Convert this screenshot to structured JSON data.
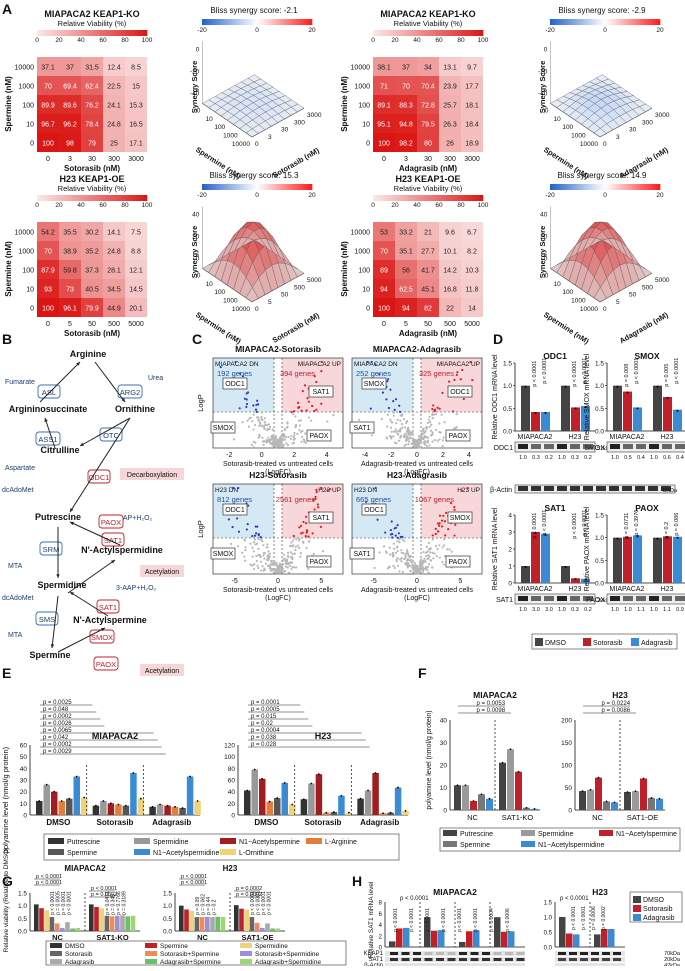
{
  "panels": {
    "A": "A",
    "B": "B",
    "C": "C",
    "D": "D",
    "E": "E",
    "F": "F",
    "G": "G",
    "H": "H"
  },
  "heatmaps": [
    {
      "title": "MIAPACA2 KEAP1-KO",
      "subtitle": "Relative Viability (%)",
      "scale": [
        "0",
        "20",
        "40",
        "60",
        "80",
        "100"
      ],
      "ylabel": "Spermine (nM)",
      "xlabel": "Sotorasib (nM)",
      "rows": [
        "10000",
        "1000",
        "100",
        "10",
        "0"
      ],
      "cols": [
        "0",
        "3",
        "30",
        "300",
        "3000"
      ],
      "values": [
        [
          37.1,
          37.0,
          31.5,
          12.4,
          8.5
        ],
        [
          70.0,
          69.4,
          62.4,
          22.5,
          15.0
        ],
        [
          89.9,
          89.6,
          76.2,
          24.1,
          15.3
        ],
        [
          96.7,
          96.2,
          78.4,
          24.8,
          16.5
        ],
        [
          100,
          98.0,
          79.0,
          25.0,
          17.1
        ]
      ]
    },
    {
      "title": "MIAPACA2 KEAP1-KO",
      "subtitle": "Relative Viability (%)",
      "scale": [
        "0",
        "20",
        "40",
        "60",
        "80",
        "100"
      ],
      "ylabel": "Spermine (nM)",
      "xlabel": "Adagrasib (nM)",
      "rows": [
        "10000",
        "1000",
        "100",
        "10",
        "0"
      ],
      "cols": [
        "0",
        "3",
        "30",
        "300",
        "3000"
      ],
      "values": [
        [
          38.1,
          37.0,
          34.0,
          13.1,
          9.7
        ],
        [
          71.0,
          70.0,
          70.4,
          23.9,
          17.7
        ],
        [
          89.1,
          88.3,
          72.8,
          25.7,
          18.1
        ],
        [
          95.1,
          94.8,
          79.5,
          26.3,
          18.4
        ],
        [
          100,
          98.2,
          80.0,
          26.0,
          18.9
        ]
      ]
    },
    {
      "title": "H23 KEAP1-OE",
      "subtitle": "Relative Viability (%)",
      "scale": [
        "0",
        "20",
        "40",
        "60",
        "80",
        "100"
      ],
      "ylabel": "Spermine (nM)",
      "xlabel": "Sotorasib (nM)",
      "rows": [
        "10000",
        "1000",
        "100",
        "10",
        "0"
      ],
      "cols": [
        "0",
        "5",
        "50",
        "500",
        "5000"
      ],
      "values": [
        [
          54.2,
          35.5,
          30.2,
          14.1,
          7.5
        ],
        [
          70.0,
          38.9,
          35.2,
          24.8,
          8.8
        ],
        [
          87.9,
          59.8,
          37.3,
          28.1,
          12.1
        ],
        [
          93.0,
          73.0,
          40.5,
          34.5,
          14.5
        ],
        [
          100,
          96.1,
          79.9,
          44.9,
          20.1
        ]
      ]
    },
    {
      "title": "H23 KEAP1-OE",
      "subtitle": "Relative Viability (%)",
      "scale": [
        "0",
        "20",
        "40",
        "60",
        "80",
        "100"
      ],
      "ylabel": "Spermine (nM)",
      "xlabel": "Adagrasib (nM)",
      "rows": [
        "10000",
        "1000",
        "100",
        "10",
        "0"
      ],
      "cols": [
        "0",
        "5",
        "50",
        "500",
        "5000"
      ],
      "values": [
        [
          53.0,
          33.2,
          21.0,
          9.6,
          6.7
        ],
        [
          70.0,
          35.1,
          27.7,
          10.1,
          8.2
        ],
        [
          89.0,
          56.0,
          41.7,
          14.2,
          10.3
        ],
        [
          94.0,
          62.5,
          45.1,
          16.8,
          11.8
        ],
        [
          100,
          94.0,
          82.0,
          22.0,
          14.0
        ]
      ]
    }
  ],
  "surfaces": [
    {
      "title": "Bliss synergy score: -2.1",
      "scale": [
        "-20",
        "0",
        "20"
      ],
      "zlabel": "Synergy Score",
      "xlabel": "Spermine (nM)",
      "ylabel": "Sotorasib (nM)",
      "xt": [
        "10000",
        "1000",
        "100",
        "10",
        "0"
      ],
      "yt": [
        "0",
        "3",
        "30",
        "300",
        "3000"
      ],
      "zt": [
        "-40",
        "-20",
        "0"
      ],
      "peak": 2.0
    },
    {
      "title": "Bliss synergy score: -2.9",
      "scale": [
        "-20",
        "0",
        "20"
      ],
      "zlabel": "Synergy Score",
      "xlabel": "Spermine (nM)",
      "ylabel": "Adagrasib (nM)",
      "xt": [
        "10000",
        "1000",
        "100",
        "10",
        "0"
      ],
      "yt": [
        "0",
        "3",
        "30",
        "300",
        "3000"
      ],
      "zt": [
        "-40",
        "-20",
        "0"
      ],
      "peak": 4.0
    },
    {
      "title": "Bliss synergy score: 15.3",
      "scale": [
        "-20",
        "0",
        "20"
      ],
      "zlabel": "Synergy Score",
      "xlabel": "Spermine (nM)",
      "ylabel": "Sotorasib (nM)",
      "xt": [
        "10000",
        "1000",
        "100",
        "10",
        "0"
      ],
      "yt": [
        "0",
        "5",
        "50",
        "500",
        "5000"
      ],
      "zt": [
        "0",
        "20",
        "40"
      ],
      "peak": 30.0
    },
    {
      "title": "Bliss synergy score: 14.9",
      "scale": [
        "-20",
        "0",
        "20"
      ],
      "zlabel": "Synergy Score",
      "xlabel": "Spermine (nM)",
      "ylabel": "Adagrasib (nM)",
      "xt": [
        "10000",
        "1000",
        "100",
        "10",
        "0"
      ],
      "yt": [
        "0",
        "5",
        "50",
        "500",
        "5000"
      ],
      "zt": [
        "0",
        "20",
        "40"
      ],
      "peak": 30.0
    }
  ],
  "pathway": {
    "nodes": {
      "arginine": "Arginine",
      "argininosuccinate": "Argininosuccinate",
      "ornithine": "Ornithine",
      "citrulline": "Citrulline",
      "putrescine": "Putrescine",
      "spermidine": "Spermidine",
      "spermine": "Spermine",
      "n1_acetylspermidine": "N'-Actylspermidine",
      "n1_acetylspermine": "N'-Actylspermine"
    },
    "enzymes": {
      "asl": "ASL",
      "arg2": "ARG2",
      "ass1": "ASS1",
      "otc": "OTC",
      "odc1": "ODC1",
      "srm": "SRM",
      "sms": "SMS",
      "sat1_a": "SAT1",
      "sat1_b": "SAT1",
      "smox": "SMOX",
      "paox_a": "PAOX",
      "paox_b": "PAOX"
    },
    "small": {
      "fumarate": "Fumarate",
      "urea": "Urea",
      "aspartate": "Aspartate",
      "dcadomet_a": "dcAdoMet",
      "mta_a": "MTA",
      "dcadomet_b": "dcAdoMet",
      "mta_b": "MTA",
      "aap_a": "3-AAP+H₂O₂",
      "aap_b": "3-AAP+H₂O₂"
    },
    "processes": {
      "decarboxylation": "Decarboxylation",
      "acetylation_a": "Acetylation",
      "acetylation_b": "Acetylation"
    }
  },
  "volcanoes": [
    {
      "title": "MIAPACA2-Sotorasib",
      "dn": "MIAPACA2 DN",
      "up": "MIAPACA2 UP",
      "dn_count": "192 genes",
      "up_count": "394 genes",
      "xlabel": "Sotorasib-treated vs untreated cells",
      "xlabel2": "(LogFC)",
      "ylabel": "LogP",
      "xt": [
        "-2",
        "0",
        "2",
        "4"
      ],
      "labels": [
        "ODC1",
        "SAT1",
        "SMOX",
        "PAOX"
      ]
    },
    {
      "title": "MIAPACA2-Adagrasib",
      "dn": "MIAPACA2 DN",
      "up": "MIAPACA2 UP",
      "dn_count": "252 genes",
      "up_count": "325 genes",
      "xlabel": "Adagrasib-treated vs untreated cells",
      "xlabel2": "(LogFC)",
      "ylabel": "",
      "xt": [
        "-4",
        "-2",
        "0",
        "2",
        "4"
      ],
      "labels": [
        "SMOX",
        "ODC1",
        "SAT1",
        "PAOX"
      ]
    },
    {
      "title": "H23-Sotorasib",
      "dn": "H23 DN",
      "up": "H23 UP",
      "dn_count": "812 genes",
      "up_count": "2561 genes",
      "xlabel": "Sotorasib-treated vs untreated cells",
      "xlabel2": "(LogFC)",
      "ylabel": "LogP",
      "xt": [
        "-5",
        "0",
        "5"
      ],
      "labels": [
        "ODC1",
        "SAT1",
        "SMOX",
        "PAOX"
      ]
    },
    {
      "title": "H23-Adagrasib",
      "dn": "H23 DN",
      "up": "H23 UP",
      "dn_count": "665 genes",
      "up_count": "1067 genes",
      "xlabel": "Adagrasib-treated vs untreated cells",
      "xlabel2": "(LogFC)",
      "ylabel": "",
      "xt": [
        "-5",
        "0",
        "5"
      ],
      "labels": [
        "ODC1",
        "SMOX",
        "SAT1",
        "PAOX"
      ]
    }
  ],
  "mrna": [
    {
      "title": "ODC1",
      "ylabel": "Relative ODC1 mRNA level",
      "yt": [
        "0.0",
        "0.5",
        "1.0",
        "1.5"
      ],
      "values": [
        [
          1.0,
          0.42,
          0.42
        ],
        [
          1.0,
          0.52,
          0.55
        ]
      ],
      "pvals": [
        [
          "p < 0.0001",
          "p < 0.0001"
        ],
        [
          "p < 0.0001",
          "p < 0.0001"
        ]
      ],
      "groups": [
        "MIAPACA2",
        "H23"
      ],
      "blot": "ODC1",
      "kda": "51kDa",
      "quant": [
        "1.0",
        "0.3",
        "0.2",
        "1.0",
        "0.3",
        "0.2"
      ]
    },
    {
      "title": "SMOX",
      "ylabel": "Relative SMOX mRNA level",
      "yt": [
        "0.0",
        "0.5",
        "1.0",
        "1.5"
      ],
      "values": [
        [
          1.0,
          0.87,
          0.52
        ],
        [
          1.0,
          0.75,
          0.47
        ]
      ],
      "pvals": [
        [
          "p = 0.008",
          "p < 0.0001"
        ],
        [
          "p = 0.005",
          "p < 0.0001"
        ]
      ],
      "groups": [
        "MIAPACA2",
        "H23"
      ],
      "blot": "SMOX",
      "kda": "62kDa",
      "quant": [
        "1.0",
        "0.5",
        "0.4",
        "1.0",
        "0.6",
        "0.4"
      ]
    },
    {
      "title": "SAT1",
      "ylabel": "Relative SAT1 mRNA level",
      "yt": [
        "0",
        "1",
        "2",
        "3",
        "4"
      ],
      "values": [
        [
          1.0,
          3.0,
          2.9
        ],
        [
          1.0,
          0.28,
          0.25
        ]
      ],
      "pvals": [
        [
          "p < 0.0001",
          "p < 0.0001"
        ],
        [
          "p < 0.0001",
          "p < 0.0001"
        ]
      ],
      "groups": [
        "MIAPACA2",
        "H23"
      ],
      "blot": "SAT1",
      "kda": "20kDa",
      "quant": [
        "1.0",
        "3.0",
        "3.0",
        "1.0",
        "0.3",
        "0.2"
      ]
    },
    {
      "title": "PAOX",
      "ylabel": "Relative PAOX mRNA level",
      "yt": [
        "0.0",
        "0.5",
        "1.0",
        "1.5"
      ],
      "values": [
        [
          1.0,
          1.02,
          1.05
        ],
        [
          1.0,
          1.03,
          1.02
        ]
      ],
      "pvals": [
        [
          "p = 0.0731",
          "p = 0.3976"
        ],
        [
          "p = 0.2",
          "p = 0.086"
        ]
      ],
      "groups": [
        "MIAPACA2",
        "H23"
      ],
      "blot": "PAOX",
      "kda": "55kDa",
      "quant": [
        "1.0",
        "1.0",
        "1.1",
        "1.0",
        "1.1",
        "0.9"
      ]
    }
  ],
  "blot_extra": {
    "actin": "β-Actin",
    "actin_kda": "42kDa"
  },
  "legend_d": [
    "DMSO",
    "Sotorasib",
    "Adagrasib"
  ],
  "polyamine_e": [
    {
      "title": "MIAPACA2",
      "groups": [
        "DMSO",
        "Sotorasib",
        "Adagrasib"
      ],
      "values": [
        [
          12,
          26,
          20,
          12,
          14,
          33,
          15
        ],
        [
          8,
          12,
          10,
          9,
          8,
          36,
          14
        ],
        [
          7,
          9,
          8,
          7,
          6,
          33,
          12
        ]
      ],
      "pvals": [
        "p = 0.0025",
        "p = 0.048",
        "p = 0.0002",
        "p = 0.0026",
        "p = 0.0065",
        "p = 0.042",
        "p = 0.0002",
        "p = 0.0029"
      ]
    },
    {
      "title": "H23",
      "groups": [
        "DMSO",
        "Sotorasib",
        "Adagrasib"
      ],
      "values": [
        [
          42,
          78,
          62,
          23,
          29,
          55,
          18
        ],
        [
          27,
          54,
          70,
          4,
          5,
          33,
          4
        ],
        [
          28,
          42,
          72,
          3,
          4,
          47,
          7
        ]
      ],
      "pvals": [
        "p = 0.0001",
        "p = 0.0005",
        "p = 0.015",
        "p = 0.02",
        "p = 0.0004",
        "p = 0.038",
        "p = 0.028"
      ]
    }
  ],
  "e_axis": {
    "ylabel": "polyamine level (nmol/g protein)",
    "mi_yt": [
      "0",
      "10",
      "20",
      "30",
      "40",
      "50",
      "60"
    ],
    "h23_yt": [
      "0",
      "20",
      "40",
      "60",
      "80",
      "100",
      "120"
    ]
  },
  "legend_e": [
    "Putrescine",
    "Spermidine",
    "N1−Acetylspermine",
    "L-Arginine",
    "Spermine",
    "N1−Acetylspermidine",
    "L-Ornithine"
  ],
  "polyamine_f": [
    {
      "title": "MIAPACA2",
      "groups": [
        "NC",
        "SAT1-KO"
      ],
      "values": [
        [
          11,
          11,
          4,
          7,
          5
        ],
        [
          21,
          27,
          17,
          1,
          0.5
        ]
      ],
      "pvals": [
        "p = 0.0053",
        "p = 0.0098"
      ],
      "yt": [
        "0",
        "10",
        "20",
        "30",
        "40"
      ]
    },
    {
      "title": "H23",
      "groups": [
        "NC",
        "SAT1-OE"
      ],
      "values": [
        [
          42,
          45,
          72,
          19,
          17
        ],
        [
          40,
          42,
          70,
          27,
          25
        ]
      ],
      "pvals": [
        "p = 0.0224",
        "p = 0.0086"
      ],
      "yt": [
        "0",
        "50",
        "100",
        "150",
        "200"
      ]
    }
  ],
  "f_axis": {
    "ylabel": "polyamine level (nmol/g protein)"
  },
  "legend_f": [
    "Putrescine",
    "Spermidine",
    "N1−Acetylspermine",
    "Spermine",
    "N1−Acetylspermidine"
  ],
  "viability_g": [
    {
      "title": "MIAPACA2",
      "groups": [
        "NC",
        "SAT1-KO"
      ],
      "values": [
        [
          1.05,
          0.9,
          0.82,
          0.55,
          0.3,
          0.12,
          0.35,
          0.1,
          0.12
        ],
        [
          1.05,
          0.95,
          0.9,
          0.6,
          0.58,
          0.6,
          0.62,
          0.58,
          0.6
        ]
      ],
      "top": [
        "p < 0.0001",
        "p < 0.0001",
        "p < 0.0001",
        "p = 0.0002"
      ],
      "inline": [
        [
          "p < 0.0001",
          "p = 0.0005",
          "p = 0.0001",
          "p < 0.0001"
        ],
        [
          "p = 0.0471",
          "p = 0.345",
          "p = 0.7766",
          "p = 0.3189"
        ]
      ]
    },
    {
      "title": "H23",
      "groups": [
        "NC",
        "SAT1-OE"
      ],
      "values": [
        [
          1.0,
          0.85,
          0.8,
          0.55,
          0.55,
          0.56,
          0.55,
          0.56,
          0.55
        ],
        [
          1.02,
          0.88,
          0.85,
          0.55,
          0.32,
          0.12,
          0.3,
          0.1,
          0.1
        ]
      ],
      "top": [
        "p < 0.0001",
        "p < 0.0001",
        "p = 0.0002",
        "p = 0.0002"
      ],
      "inline": [
        [
          "p = 0.09",
          "p = 0.062",
          "p = 0.44",
          "p = 0.2"
        ],
        [
          "p < 0.0001",
          "p < 0.0001",
          "p < 0.0001",
          "p < 0.0001"
        ]
      ]
    }
  ],
  "g_axis": {
    "ylabel": "Relative viability (Relative to DMSO)",
    "yt": [
      "0.0",
      "0.5",
      "1.0",
      "1.5"
    ]
  },
  "legend_g": [
    "DMSO",
    "Sotorasib",
    "Adagrasib",
    "Spermine",
    "Sotorasib+Spermine",
    "Adagrasib+Spermine",
    "Spermidine",
    "Sotorasib+Spermidine",
    "Adagrasib+Spermidine"
  ],
  "sat1_h": {
    "title_mi": "MIAPACA2",
    "title_h23": "H23",
    "ylabel": "Relative SAT1 mRNA level",
    "yt": [
      "0",
      "2",
      "4",
      "6",
      "8"
    ],
    "mi_groups": [
      "NC",
      "KEAP1-KO",
      "KEAP1-WT",
      "KEAP1-MU"
    ],
    "mi_values": [
      [
        1.0,
        3.3,
        3.4
      ],
      [
        5.3,
        2.9,
        3.0
      ],
      [
        0.9,
        2.8,
        3.0
      ],
      [
        5.3,
        2.7,
        2.8
      ]
    ],
    "mi_top": "p < 0.0001",
    "mi_p": [
      "p < 0.0001",
      "p < 0.0001",
      "p < 0.0001",
      "p < 0.0001",
      "p < 0.0001",
      "p < 0.0001",
      "p < 0.0004",
      "p < 0.0006"
    ],
    "h23_groups": [
      "NC",
      "KEAP1-OE"
    ],
    "h23_values": [
      [
        1.0,
        0.45,
        0.42
      ],
      [
        0.42,
        0.6,
        0.6
      ]
    ],
    "h23_top": "p < 0.0001",
    "h23_p": [
      "p < 0.0001",
      "p < 0.0001",
      "p = 0.0006",
      "p = 0.0002"
    ],
    "h23_yt": [
      "0.0",
      "0.5",
      "1.0",
      "1.5"
    ],
    "blots": [
      "KEAP1",
      "SAT1",
      "β-Actin"
    ],
    "kda": [
      "70kDa",
      "20kDa",
      "42kDa"
    ],
    "keap1_mi": [
      "1.0",
      "1.1",
      "1.0",
      "0.0",
      "0.0",
      "0.0",
      "3.0",
      "3.1",
      "3.2",
      "0.0",
      "0.0",
      "0.0"
    ],
    "sat1_mi": [
      "1.0",
      "3.1",
      "3.3",
      "5.3",
      "2.8",
      "2.6",
      "0.9",
      "2.8",
      "2.7",
      "5.4",
      "2.4",
      "2.5"
    ],
    "keap1_h23": [
      "1.0",
      "1.1",
      "1.0",
      "3.5",
      "3.3",
      "3.0"
    ],
    "sat1_h23": [
      "1.0",
      "0.4",
      "0.4",
      "0.2",
      "0.5",
      "0.5"
    ]
  },
  "legend_h": [
    "DMSO",
    "Sotorasib",
    "Adagrasib"
  ]
}
